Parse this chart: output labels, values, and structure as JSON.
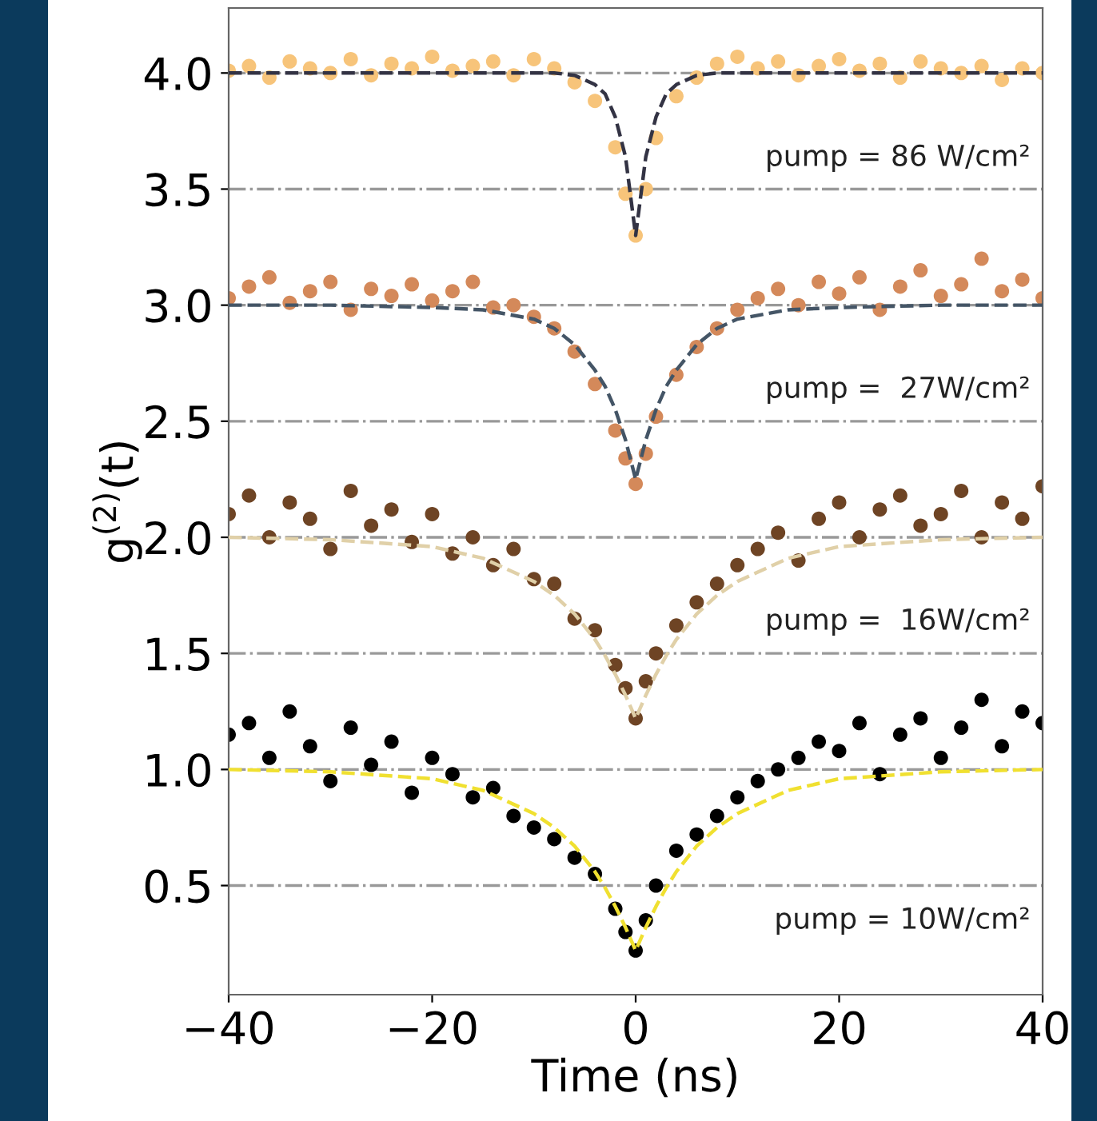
{
  "chart_data": {
    "type": "scatter",
    "xlabel": "Time (ns)",
    "ylabel": "g$^{(2)}$(t)",
    "x": [
      -40,
      -38,
      -36,
      -34,
      -32,
      -30,
      -28,
      -26,
      -24,
      -22,
      -20,
      -18,
      -16,
      -14,
      -12,
      -10,
      -8,
      -6,
      -4,
      -2,
      -1,
      0,
      1,
      2,
      4,
      6,
      8,
      10,
      12,
      14,
      16,
      18,
      20,
      22,
      24,
      26,
      28,
      30,
      32,
      34,
      36,
      38,
      40
    ],
    "xlim": [
      -40,
      40
    ],
    "xticks": [
      {
        "value": -40,
        "label": "−40"
      },
      {
        "value": -20,
        "label": "−20"
      },
      0,
      20,
      40
    ],
    "ylim": [
      0.03,
      4.28
    ],
    "yticks": [
      {
        "value": 0.5,
        "label": "0.5"
      },
      {
        "value": 1.0,
        "label": "1.0"
      },
      {
        "value": 1.5,
        "label": "1.5"
      },
      {
        "value": 2.0,
        "label": "2.0"
      },
      {
        "value": 2.5,
        "label": "2.5"
      },
      {
        "value": 3.0,
        "label": "3.0"
      },
      {
        "value": 3.5,
        "label": "3.5"
      },
      {
        "value": 4.0,
        "label": "4.0"
      }
    ],
    "grid": "y",
    "series": [
      {
        "color": "#f7c47a",
        "marker": "circle",
        "values": [
          4.01,
          4.03,
          3.98,
          4.05,
          4.02,
          4.0,
          4.06,
          3.99,
          4.04,
          4.02,
          4.07,
          4.01,
          4.03,
          4.05,
          3.99,
          4.06,
          4.02,
          3.96,
          3.88,
          3.68,
          3.48,
          3.3,
          3.5,
          3.72,
          3.9,
          3.98,
          4.04,
          4.07,
          4.02,
          4.05,
          3.99,
          4.03,
          4.06,
          4.01,
          4.04,
          3.98,
          4.05,
          4.02,
          4.0,
          4.03,
          3.97,
          4.02,
          4.0
        ]
      },
      {
        "color": "#d4895a",
        "marker": "circle",
        "values": [
          3.03,
          3.08,
          3.12,
          3.01,
          3.06,
          3.1,
          2.98,
          3.07,
          3.04,
          3.09,
          3.02,
          3.06,
          3.1,
          2.99,
          3.0,
          2.95,
          2.9,
          2.8,
          2.66,
          2.46,
          2.34,
          2.23,
          2.36,
          2.52,
          2.7,
          2.82,
          2.9,
          2.98,
          3.03,
          3.07,
          3.0,
          3.1,
          3.05,
          3.12,
          2.98,
          3.08,
          3.15,
          3.04,
          3.09,
          3.2,
          3.06,
          3.11,
          3.03
        ]
      },
      {
        "color": "#6e4424",
        "marker": "circle",
        "values": [
          2.1,
          2.18,
          2.0,
          2.15,
          2.08,
          1.95,
          2.2,
          2.05,
          2.12,
          1.98,
          2.1,
          1.93,
          2.0,
          1.88,
          1.95,
          1.82,
          1.8,
          1.65,
          1.6,
          1.45,
          1.35,
          1.22,
          1.38,
          1.5,
          1.62,
          1.72,
          1.8,
          1.88,
          1.95,
          2.02,
          1.9,
          2.08,
          2.15,
          2.0,
          2.12,
          2.18,
          2.05,
          2.1,
          2.2,
          2.0,
          2.15,
          2.08,
          2.22
        ]
      },
      {
        "color": "#000000",
        "marker": "circle",
        "values": [
          1.15,
          1.2,
          1.05,
          1.25,
          1.1,
          0.95,
          1.18,
          1.02,
          1.12,
          0.9,
          1.05,
          0.98,
          0.88,
          0.92,
          0.8,
          0.75,
          0.7,
          0.62,
          0.55,
          0.4,
          0.3,
          0.22,
          0.35,
          0.5,
          0.65,
          0.72,
          0.8,
          0.88,
          0.95,
          1.0,
          1.05,
          1.12,
          1.08,
          1.2,
          0.98,
          1.15,
          1.22,
          1.05,
          1.18,
          1.3,
          1.1,
          1.25,
          1.2
        ]
      },
      {
        "type": "line",
        "line_style": "dashed",
        "color": "#333344",
        "x": [
          -40,
          -30,
          -20,
          -15,
          -10,
          -8,
          -6,
          -4,
          -3,
          -2,
          -1,
          0,
          1,
          2,
          3,
          4,
          6,
          8,
          10,
          15,
          20,
          30,
          40
        ],
        "values": [
          4.0,
          4.0,
          4.0,
          4.0,
          4.0,
          4.0,
          3.99,
          3.95,
          3.91,
          3.81,
          3.64,
          3.3,
          3.64,
          3.81,
          3.91,
          3.95,
          3.99,
          4.0,
          4.0,
          4.0,
          4.0,
          4.0,
          4.0
        ]
      },
      {
        "type": "line",
        "line_style": "dashed",
        "color": "#445566",
        "x": [
          -40,
          -30,
          -20,
          -15,
          -10,
          -8,
          -6,
          -4,
          -3,
          -2,
          -1,
          0,
          1,
          2,
          3,
          4,
          6,
          8,
          10,
          15,
          20,
          30,
          40
        ],
        "values": [
          3.0,
          3.0,
          2.99,
          2.98,
          2.94,
          2.9,
          2.83,
          2.72,
          2.65,
          2.55,
          2.42,
          2.25,
          2.42,
          2.55,
          2.65,
          2.72,
          2.83,
          2.9,
          2.94,
          2.98,
          2.99,
          3.0,
          3.0
        ]
      },
      {
        "type": "line",
        "line_style": "dashed",
        "color": "#e0d0a8",
        "x": [
          -40,
          -30,
          -20,
          -15,
          -10,
          -8,
          -6,
          -4,
          -3,
          -2,
          -1,
          0,
          1,
          2,
          3,
          4,
          6,
          8,
          10,
          15,
          20,
          30,
          40
        ],
        "values": [
          2.0,
          1.99,
          1.96,
          1.91,
          1.81,
          1.75,
          1.67,
          1.56,
          1.49,
          1.41,
          1.32,
          1.22,
          1.32,
          1.41,
          1.49,
          1.56,
          1.67,
          1.75,
          1.81,
          1.91,
          1.96,
          1.99,
          2.0
        ]
      },
      {
        "type": "line",
        "line_style": "dashed",
        "color": "#f0e030",
        "x": [
          -40,
          -30,
          -20,
          -15,
          -10,
          -8,
          -6,
          -4,
          -3,
          -2,
          -1,
          0,
          1,
          2,
          3,
          4,
          6,
          8,
          10,
          15,
          20,
          30,
          40
        ],
        "values": [
          1.0,
          0.99,
          0.96,
          0.91,
          0.81,
          0.75,
          0.67,
          0.56,
          0.49,
          0.41,
          0.32,
          0.22,
          0.32,
          0.41,
          0.49,
          0.56,
          0.67,
          0.75,
          0.81,
          0.91,
          0.96,
          0.99,
          1.0
        ]
      }
    ],
    "annotations": [
      "pump = 86 W/cm²",
      "pump =  27W/cm²",
      "pump =  16W/cm²",
      "pump = 10W/cm²"
    ]
  }
}
